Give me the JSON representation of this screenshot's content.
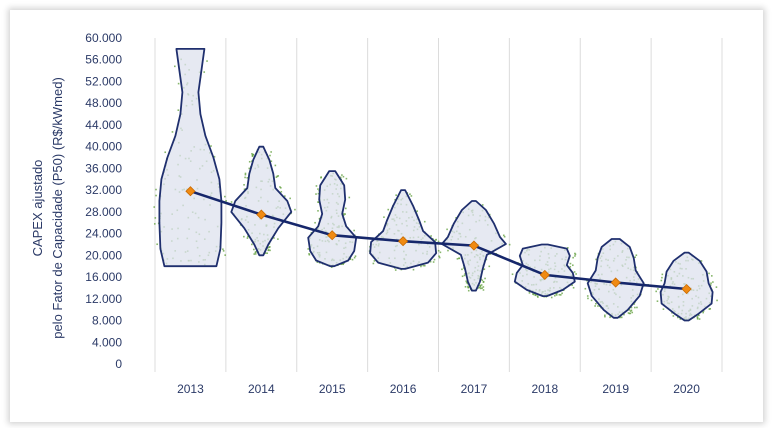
{
  "chart_data": {
    "type": "violin",
    "ylabel_lines": [
      "CAPEX ajustado",
      "pelo Fator de Capacidade (P50) (R$/kWmed)"
    ],
    "categories": [
      "2013",
      "2014",
      "2015",
      "2016",
      "2017",
      "2018",
      "2019",
      "2020"
    ],
    "yticks": [
      "0",
      "4.000",
      "8.000",
      "12.000",
      "16.000",
      "20.000",
      "24.000",
      "28.000",
      "32.000",
      "36.000",
      "40.000",
      "44.000",
      "48.000",
      "52.000",
      "56.000",
      "60.000"
    ],
    "ylim": [
      0,
      60000
    ],
    "grid": "vertical",
    "median_line_values": [
      31800,
      27500,
      23700,
      22600,
      21800,
      16400,
      15000,
      13800
    ],
    "distributions": [
      {
        "category": "2013",
        "min": 18000,
        "max": 58000
      },
      {
        "category": "2014",
        "min": 20000,
        "max": 40000
      },
      {
        "category": "2015",
        "min": 18000,
        "max": 35500
      },
      {
        "category": "2016",
        "min": 17500,
        "max": 32000
      },
      {
        "category": "2017",
        "min": 13500,
        "max": 30000
      },
      {
        "category": "2018",
        "min": 12500,
        "max": 22000
      },
      {
        "category": "2019",
        "min": 8500,
        "max": 23000
      },
      {
        "category": "2020",
        "min": 8000,
        "max": 20500
      }
    ],
    "colors": {
      "violin_fill": "#dde2ee",
      "violin_stroke": "#1f2f6e",
      "line": "#16276b",
      "marker": "#f08a12",
      "points": "#5f9e3a",
      "grid": "#dcdcdc",
      "text": "#2b3a67"
    }
  }
}
